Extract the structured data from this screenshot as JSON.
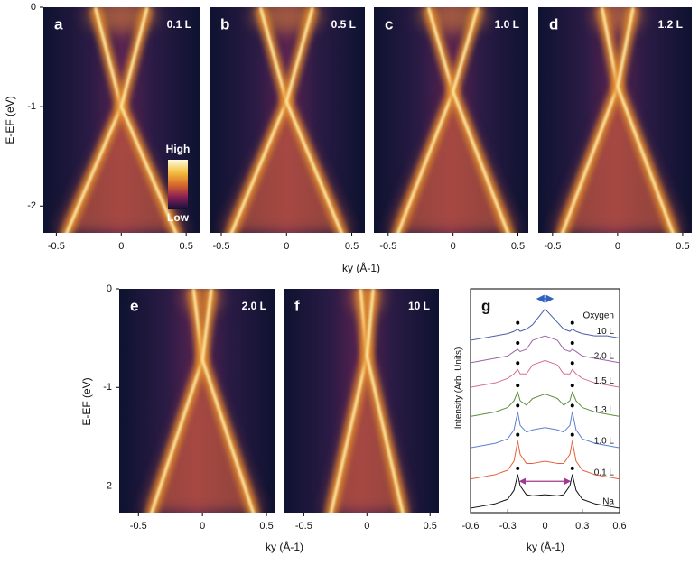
{
  "chart_data": [
    {
      "type": "heatmap",
      "panel": "a",
      "annotation": "0.1 L",
      "xlim": [
        -0.6,
        0.61
      ],
      "ylim": [
        -2.27,
        0
      ],
      "xticks": [
        -0.5,
        0,
        0.5
      ],
      "yticks": [
        -2,
        -1,
        0
      ],
      "xlabel": "ky (Å-1)",
      "ylabel": "E-EF (eV)",
      "colorbar": {
        "high": "High",
        "low": "Low"
      }
    },
    {
      "type": "heatmap",
      "panel": "b",
      "annotation": "0.5 L",
      "xlim": [
        -0.59,
        0.6
      ],
      "ylim": [
        -2.27,
        0
      ],
      "xticks": [
        -0.5,
        0,
        0.5
      ]
    },
    {
      "type": "heatmap",
      "panel": "c",
      "annotation": "1.0 L",
      "xlim": [
        -0.61,
        0.58
      ],
      "ylim": [
        -2.27,
        0
      ],
      "xticks": [
        -0.5,
        0,
        0.5
      ]
    },
    {
      "type": "heatmap",
      "panel": "d",
      "annotation": "1.2 L",
      "xlim": [
        -0.61,
        0.57
      ],
      "ylim": [
        -2.27,
        0
      ],
      "xticks": [
        -0.5,
        0,
        0.5
      ]
    },
    {
      "type": "heatmap",
      "panel": "e",
      "annotation": "2.0 L",
      "xlim": [
        -0.65,
        0.57
      ],
      "ylim": [
        -2.27,
        0
      ],
      "xticks": [
        -0.5,
        0,
        0.5
      ],
      "yticks": [
        -2,
        -1,
        0
      ],
      "xlabel": "ky (Å-1)",
      "ylabel": "E-EF (eV)"
    },
    {
      "type": "heatmap",
      "panel": "f",
      "annotation": "10 L",
      "xlim": [
        -0.66,
        0.57
      ],
      "ylim": [
        -2.27,
        0
      ],
      "xticks": [
        -0.5,
        0,
        0.5
      ]
    },
    {
      "type": "line",
      "panel": "g",
      "annotation": "Oxygen",
      "xlabel": "ky (Å-1)",
      "ylabel": "Intensity (Arb. Units)",
      "xlim": [
        -0.6,
        0.6
      ],
      "ylim": [
        0,
        100
      ],
      "xticks": [
        -0.6,
        -0.3,
        0,
        0.3,
        0.6
      ],
      "peak_x": [
        -0.22,
        0.22
      ],
      "x": [
        -0.6,
        -0.5,
        -0.4,
        -0.3,
        -0.25,
        -0.22,
        -0.2,
        -0.15,
        -0.1,
        0,
        0.1,
        0.15,
        0.2,
        0.22,
        0.25,
        0.3,
        0.4,
        0.5,
        0.6
      ],
      "series": [
        {
          "name": "Na",
          "color": "#111111",
          "values": [
            2,
            3,
            4,
            6,
            10,
            17,
            12,
            8,
            7.5,
            8,
            7.5,
            8,
            12,
            17,
            10,
            6,
            4,
            3,
            2
          ]
        },
        {
          "name": "0.1 L",
          "color": "#e5603a",
          "values": [
            15,
            16,
            17,
            19,
            23,
            32,
            26,
            22,
            22,
            23,
            22,
            22,
            26,
            32,
            23,
            19,
            17,
            16,
            15
          ]
        },
        {
          "name": "1.0 L",
          "color": "#5a7fd0",
          "values": [
            29,
            30,
            31,
            33,
            37,
            45,
            39,
            36,
            37,
            38,
            37,
            36,
            39,
            45,
            37,
            33,
            31,
            30,
            29
          ]
        },
        {
          "name": "1.3 L",
          "color": "#5e8f3c",
          "values": [
            43,
            44,
            45,
            47,
            50,
            54,
            50,
            48,
            51,
            53,
            51,
            48,
            50,
            54,
            50,
            47,
            45,
            44,
            43
          ]
        },
        {
          "name": "1.5 L",
          "color": "#d6708f",
          "values": [
            56,
            57,
            58,
            60,
            62,
            64,
            62,
            62,
            66,
            68,
            66,
            62,
            62,
            64,
            62,
            60,
            58,
            57,
            56
          ]
        },
        {
          "name": "2.0 L",
          "color": "#9c62a8",
          "values": [
            67,
            68,
            69,
            70,
            72,
            73,
            72,
            73,
            77,
            79,
            77,
            73,
            72,
            73,
            72,
            70,
            69,
            68,
            67
          ]
        },
        {
          "name": "10 L",
          "color": "#4a5ea8",
          "values": [
            77,
            78,
            79,
            80,
            81,
            82,
            81,
            82,
            84,
            91,
            85,
            82,
            81,
            82,
            81,
            80,
            79,
            79,
            78
          ]
        }
      ]
    }
  ]
}
